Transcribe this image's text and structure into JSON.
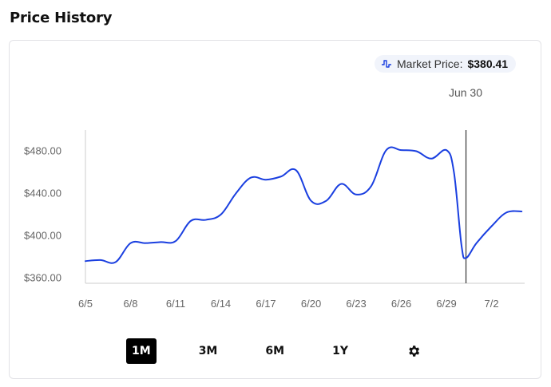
{
  "header": {
    "title": "Price History"
  },
  "market_price": {
    "label": "Market Price:",
    "value": "$380.41",
    "icon": "price-chart-icon"
  },
  "hover": {
    "date_label": "Jun 30"
  },
  "range_buttons": [
    {
      "label": "1M",
      "active": true
    },
    {
      "label": "3M",
      "active": false
    },
    {
      "label": "6M",
      "active": false
    },
    {
      "label": "1Y",
      "active": false
    }
  ],
  "settings_icon": "gear-icon",
  "colors": {
    "line": "#1a3fe0",
    "crosshair": "#333333",
    "axis": "#cccccc"
  },
  "chart_data": {
    "type": "line",
    "title": "",
    "xlabel": "",
    "ylabel": "",
    "ylim": [
      355,
      500
    ],
    "y_ticks": [
      360,
      400,
      440,
      480
    ],
    "y_tick_labels": [
      "$360.00",
      "$400.00",
      "$440.00",
      "$480.00"
    ],
    "x_ticks": [
      "6/5",
      "6/8",
      "6/11",
      "6/14",
      "6/17",
      "6/20",
      "6/23",
      "6/26",
      "6/29",
      "7/2"
    ],
    "x_tick_days": [
      5,
      8,
      11,
      14,
      17,
      20,
      23,
      26,
      29,
      32
    ],
    "xlim_days": [
      5,
      34.2
    ],
    "hover_day": 30.3,
    "series": [
      {
        "x_days": [
          5,
          6,
          7,
          8,
          9,
          10,
          11,
          12,
          13,
          14,
          15,
          16,
          17,
          18,
          19,
          20,
          21,
          22,
          23,
          24,
          25,
          26,
          27,
          28,
          29,
          29.5,
          30,
          30.3,
          31,
          32,
          33,
          34
        ],
        "values": [
          376,
          377,
          375,
          393,
          393,
          394,
          395,
          414,
          415,
          420,
          440,
          455,
          453,
          456,
          462,
          433,
          433,
          449,
          439,
          447,
          481,
          481,
          480,
          473,
          481,
          460,
          391,
          379,
          393,
          409,
          422,
          423
        ]
      }
    ]
  }
}
